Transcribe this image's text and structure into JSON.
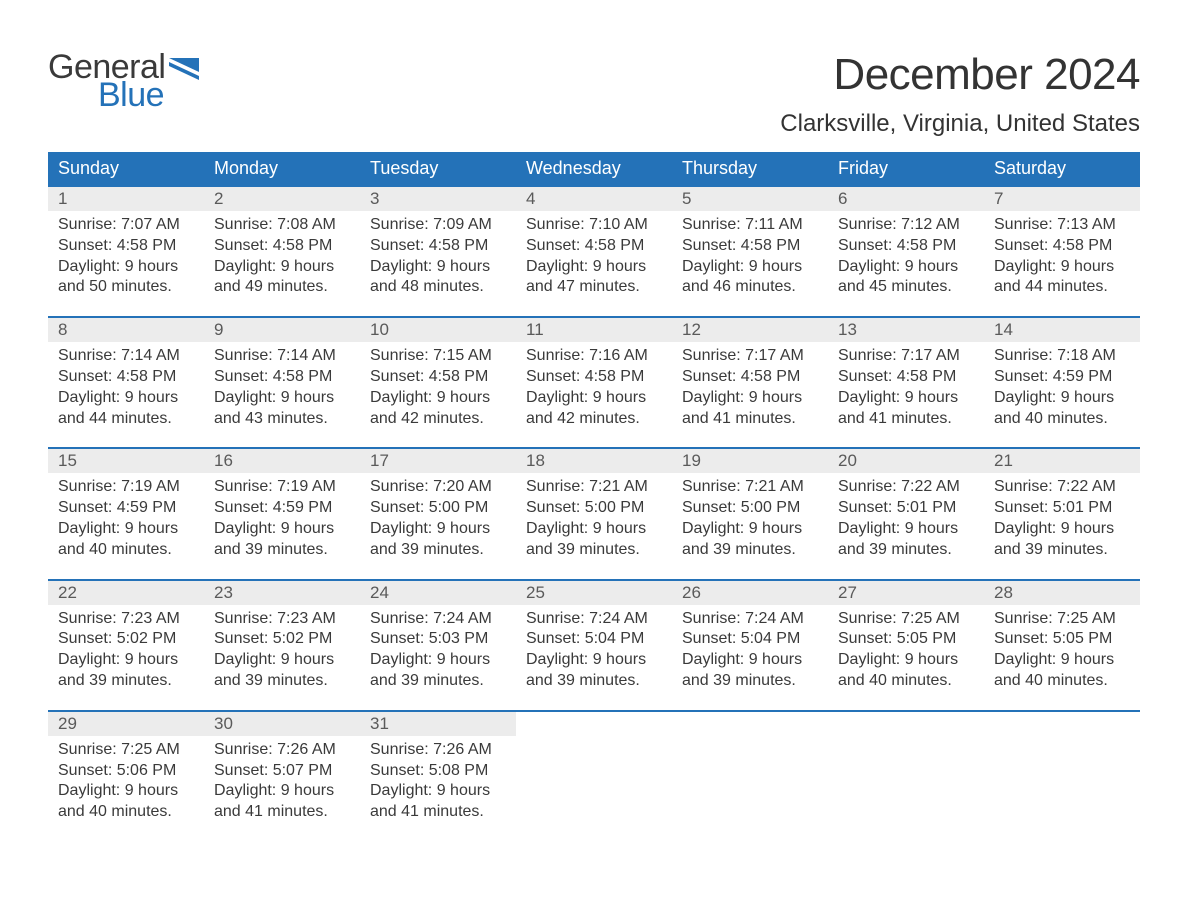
{
  "logo": {
    "general": "General",
    "blue": "Blue",
    "flag_color": "#2472b8"
  },
  "title": "December 2024",
  "location": "Clarksville, Virginia, United States",
  "weekdays": [
    "Sunday",
    "Monday",
    "Tuesday",
    "Wednesday",
    "Thursday",
    "Friday",
    "Saturday"
  ],
  "colors": {
    "header_bg": "#2472b8",
    "header_text": "#ffffff",
    "daynum_bg": "#ececec",
    "daynum_text": "#5a5a5a",
    "row_border": "#2472b8",
    "body_text": "#3a3a3a",
    "page_bg": "#ffffff",
    "logo_blue": "#2472b8",
    "logo_gray": "#3a3a3a"
  },
  "typography": {
    "title_fontsize": 44,
    "location_fontsize": 24,
    "weekday_fontsize": 18,
    "daynum_fontsize": 17,
    "cell_fontsize": 16,
    "logo_fontsize": 34
  },
  "labels": {
    "sunrise": "Sunrise",
    "sunset": "Sunset",
    "daylight": "Daylight"
  },
  "weeks": [
    [
      {
        "day": "1",
        "sunrise": "7:07 AM",
        "sunset": "4:58 PM",
        "dl_h": 9,
        "dl_m": 50
      },
      {
        "day": "2",
        "sunrise": "7:08 AM",
        "sunset": "4:58 PM",
        "dl_h": 9,
        "dl_m": 49
      },
      {
        "day": "3",
        "sunrise": "7:09 AM",
        "sunset": "4:58 PM",
        "dl_h": 9,
        "dl_m": 48
      },
      {
        "day": "4",
        "sunrise": "7:10 AM",
        "sunset": "4:58 PM",
        "dl_h": 9,
        "dl_m": 47
      },
      {
        "day": "5",
        "sunrise": "7:11 AM",
        "sunset": "4:58 PM",
        "dl_h": 9,
        "dl_m": 46
      },
      {
        "day": "6",
        "sunrise": "7:12 AM",
        "sunset": "4:58 PM",
        "dl_h": 9,
        "dl_m": 45
      },
      {
        "day": "7",
        "sunrise": "7:13 AM",
        "sunset": "4:58 PM",
        "dl_h": 9,
        "dl_m": 44
      }
    ],
    [
      {
        "day": "8",
        "sunrise": "7:14 AM",
        "sunset": "4:58 PM",
        "dl_h": 9,
        "dl_m": 44
      },
      {
        "day": "9",
        "sunrise": "7:14 AM",
        "sunset": "4:58 PM",
        "dl_h": 9,
        "dl_m": 43
      },
      {
        "day": "10",
        "sunrise": "7:15 AM",
        "sunset": "4:58 PM",
        "dl_h": 9,
        "dl_m": 42
      },
      {
        "day": "11",
        "sunrise": "7:16 AM",
        "sunset": "4:58 PM",
        "dl_h": 9,
        "dl_m": 42
      },
      {
        "day": "12",
        "sunrise": "7:17 AM",
        "sunset": "4:58 PM",
        "dl_h": 9,
        "dl_m": 41
      },
      {
        "day": "13",
        "sunrise": "7:17 AM",
        "sunset": "4:58 PM",
        "dl_h": 9,
        "dl_m": 41
      },
      {
        "day": "14",
        "sunrise": "7:18 AM",
        "sunset": "4:59 PM",
        "dl_h": 9,
        "dl_m": 40
      }
    ],
    [
      {
        "day": "15",
        "sunrise": "7:19 AM",
        "sunset": "4:59 PM",
        "dl_h": 9,
        "dl_m": 40
      },
      {
        "day": "16",
        "sunrise": "7:19 AM",
        "sunset": "4:59 PM",
        "dl_h": 9,
        "dl_m": 39
      },
      {
        "day": "17",
        "sunrise": "7:20 AM",
        "sunset": "5:00 PM",
        "dl_h": 9,
        "dl_m": 39
      },
      {
        "day": "18",
        "sunrise": "7:21 AM",
        "sunset": "5:00 PM",
        "dl_h": 9,
        "dl_m": 39
      },
      {
        "day": "19",
        "sunrise": "7:21 AM",
        "sunset": "5:00 PM",
        "dl_h": 9,
        "dl_m": 39
      },
      {
        "day": "20",
        "sunrise": "7:22 AM",
        "sunset": "5:01 PM",
        "dl_h": 9,
        "dl_m": 39
      },
      {
        "day": "21",
        "sunrise": "7:22 AM",
        "sunset": "5:01 PM",
        "dl_h": 9,
        "dl_m": 39
      }
    ],
    [
      {
        "day": "22",
        "sunrise": "7:23 AM",
        "sunset": "5:02 PM",
        "dl_h": 9,
        "dl_m": 39
      },
      {
        "day": "23",
        "sunrise": "7:23 AM",
        "sunset": "5:02 PM",
        "dl_h": 9,
        "dl_m": 39
      },
      {
        "day": "24",
        "sunrise": "7:24 AM",
        "sunset": "5:03 PM",
        "dl_h": 9,
        "dl_m": 39
      },
      {
        "day": "25",
        "sunrise": "7:24 AM",
        "sunset": "5:04 PM",
        "dl_h": 9,
        "dl_m": 39
      },
      {
        "day": "26",
        "sunrise": "7:24 AM",
        "sunset": "5:04 PM",
        "dl_h": 9,
        "dl_m": 39
      },
      {
        "day": "27",
        "sunrise": "7:25 AM",
        "sunset": "5:05 PM",
        "dl_h": 9,
        "dl_m": 40
      },
      {
        "day": "28",
        "sunrise": "7:25 AM",
        "sunset": "5:05 PM",
        "dl_h": 9,
        "dl_m": 40
      }
    ],
    [
      {
        "day": "29",
        "sunrise": "7:25 AM",
        "sunset": "5:06 PM",
        "dl_h": 9,
        "dl_m": 40
      },
      {
        "day": "30",
        "sunrise": "7:26 AM",
        "sunset": "5:07 PM",
        "dl_h": 9,
        "dl_m": 41
      },
      {
        "day": "31",
        "sunrise": "7:26 AM",
        "sunset": "5:08 PM",
        "dl_h": 9,
        "dl_m": 41
      },
      null,
      null,
      null,
      null
    ]
  ]
}
